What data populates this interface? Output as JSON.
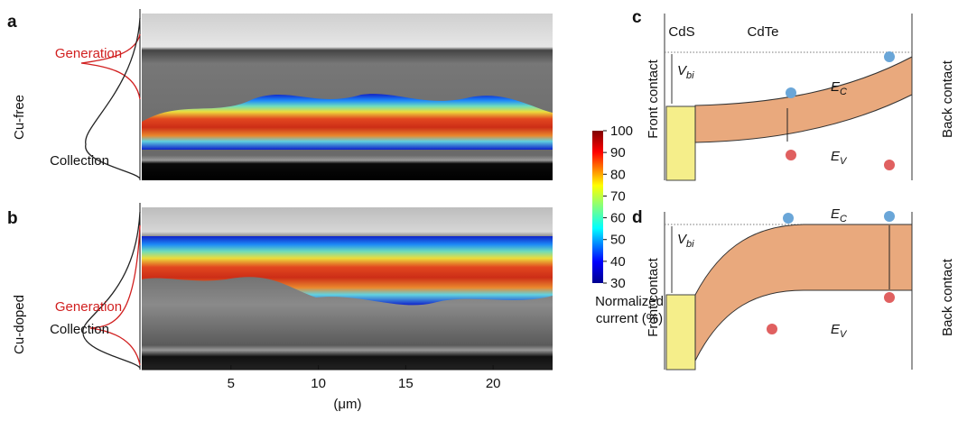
{
  "panels": [
    {
      "label": "a",
      "sample": "Cu-free",
      "generation": "Generation",
      "collection": "Collection"
    },
    {
      "label": "b",
      "sample": "Cu-doped",
      "generation": "Generation",
      "collection": "Collection"
    }
  ],
  "x_axis": {
    "label": "(μm)",
    "xlim": [
      0,
      23.4
    ],
    "ticks": [
      5,
      10,
      15,
      20
    ]
  },
  "colorbar": {
    "lim": [
      30,
      100
    ],
    "ticks": [
      30,
      40,
      50,
      60,
      70,
      80,
      90,
      100
    ],
    "label_lines": [
      "Normalized",
      "current (%)"
    ]
  },
  "band_diagrams": [
    {
      "label": "c",
      "window": "CdS",
      "absorber": "CdTe",
      "left": "Front contact",
      "right": "Back contact",
      "vbi": {
        "main": "V",
        "sub": "bi"
      },
      "ec": {
        "main": "E",
        "sub": "C"
      },
      "ev": {
        "main": "E",
        "sub": "V"
      }
    },
    {
      "label": "d",
      "left": "Front contact",
      "right": "Back contact",
      "vbi": {
        "main": "V",
        "sub": "bi"
      },
      "ec": {
        "main": "E",
        "sub": "C"
      },
      "ev": {
        "main": "E",
        "sub": "V"
      }
    }
  ]
}
